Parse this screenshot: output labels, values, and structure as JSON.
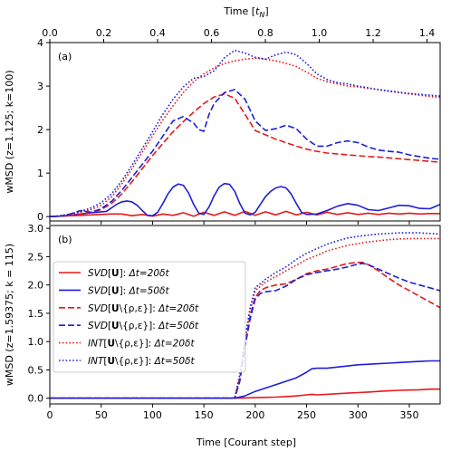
{
  "figure": {
    "top_axis_label": "Time [t_N]",
    "bottom_axis_label": "Time [Courant step]",
    "top_ticks": [
      "0.0",
      "0.2",
      "0.4",
      "0.6",
      "0.8",
      "1.0",
      "1.2",
      "1.4"
    ]
  },
  "colors": {
    "red": "#e41a1c",
    "blue": "#1f1fd6"
  },
  "chart_data": [
    {
      "type": "line",
      "panel_label": "(a)",
      "ylabel": "wMSD (z=1.125; k=100)",
      "xlabel": "",
      "xlim": [
        0,
        380
      ],
      "ylim": [
        -0.1,
        4.0
      ],
      "xticks": [
        0,
        50,
        100,
        150,
        200,
        250,
        300,
        350
      ],
      "yticks": [
        0,
        1,
        2,
        3,
        4
      ],
      "series": [
        {
          "name": "SVD[U] : Δt = 20δt",
          "color": "red",
          "dash": "solid",
          "x": [
            0,
            10,
            20,
            30,
            40,
            50,
            60,
            70,
            80,
            90,
            100,
            110,
            120,
            130,
            140,
            150,
            160,
            170,
            180,
            190,
            200,
            210,
            220,
            230,
            240,
            250,
            260,
            270,
            280,
            290,
            300,
            310,
            320,
            330,
            340,
            350,
            360,
            370,
            380
          ],
          "y": [
            0,
            0.01,
            0.02,
            0.03,
            0.04,
            0.05,
            0.06,
            0.06,
            0.02,
            0.05,
            0.01,
            0.06,
            0.03,
            0.09,
            0.01,
            0.1,
            0.03,
            0.11,
            0.03,
            0.12,
            0.03,
            0.11,
            0.04,
            0.12,
            0.04,
            0.1,
            0.04,
            0.1,
            0.05,
            0.09,
            0.05,
            0.08,
            0.05,
            0.08,
            0.06,
            0.08,
            0.06,
            0.07,
            0.07
          ]
        },
        {
          "name": "SVD[U] : Δt = 50δt",
          "color": "blue",
          "dash": "solid",
          "x": [
            0,
            10,
            20,
            30,
            40,
            50,
            55,
            60,
            65,
            70,
            75,
            80,
            85,
            90,
            95,
            100,
            105,
            110,
            115,
            120,
            125,
            130,
            135,
            140,
            145,
            150,
            155,
            160,
            165,
            170,
            175,
            180,
            185,
            190,
            195,
            200,
            205,
            210,
            215,
            220,
            225,
            230,
            235,
            240,
            245,
            250,
            260,
            270,
            280,
            290,
            300,
            310,
            320,
            330,
            340,
            350,
            360,
            370,
            380
          ],
          "y": [
            0,
            0.01,
            0.03,
            0.06,
            0.09,
            0.11,
            0.12,
            0.2,
            0.28,
            0.34,
            0.36,
            0.34,
            0.26,
            0.14,
            0.03,
            0.02,
            0.1,
            0.3,
            0.52,
            0.68,
            0.75,
            0.72,
            0.55,
            0.28,
            0.08,
            0.05,
            0.22,
            0.48,
            0.68,
            0.76,
            0.74,
            0.58,
            0.3,
            0.08,
            0.04,
            0.1,
            0.28,
            0.46,
            0.58,
            0.66,
            0.69,
            0.66,
            0.52,
            0.3,
            0.1,
            0.05,
            0.06,
            0.14,
            0.24,
            0.3,
            0.26,
            0.16,
            0.14,
            0.2,
            0.26,
            0.25,
            0.19,
            0.18,
            0.28
          ]
        },
        {
          "name": "SVD[U\\{ρ,ε}] : Δt = 20δt",
          "color": "red",
          "dash": "dashed",
          "x": [
            0,
            10,
            20,
            30,
            40,
            50,
            60,
            70,
            80,
            90,
            100,
            110,
            120,
            130,
            140,
            150,
            160,
            170,
            180,
            190,
            200,
            210,
            220,
            230,
            240,
            250,
            260,
            270,
            280,
            290,
            300,
            310,
            320,
            330,
            340,
            350,
            360,
            370,
            380
          ],
          "y": [
            0,
            0.01,
            0.03,
            0.06,
            0.1,
            0.16,
            0.3,
            0.52,
            0.8,
            1.1,
            1.4,
            1.68,
            1.95,
            2.18,
            2.4,
            2.6,
            2.75,
            2.82,
            2.72,
            2.35,
            1.98,
            1.88,
            1.78,
            1.7,
            1.62,
            1.55,
            1.5,
            1.46,
            1.44,
            1.42,
            1.4,
            1.38,
            1.37,
            1.35,
            1.33,
            1.31,
            1.29,
            1.27,
            1.25
          ]
        },
        {
          "name": "SVD[U\\{ρ,ε}] : Δt = 50δt",
          "color": "blue",
          "dash": "dashed",
          "x": [
            0,
            10,
            20,
            30,
            40,
            50,
            60,
            70,
            80,
            90,
            100,
            110,
            120,
            130,
            140,
            145,
            150,
            155,
            160,
            170,
            180,
            190,
            200,
            210,
            220,
            230,
            240,
            250,
            260,
            270,
            280,
            290,
            300,
            310,
            320,
            330,
            340,
            350,
            360,
            370,
            380
          ],
          "y": [
            0,
            0.01,
            0.06,
            0.14,
            0.1,
            0.18,
            0.35,
            0.6,
            0.9,
            1.2,
            1.5,
            1.85,
            2.2,
            2.3,
            2.15,
            2.0,
            1.96,
            2.35,
            2.6,
            2.85,
            2.92,
            2.7,
            2.2,
            1.98,
            2.02,
            2.1,
            2.02,
            1.78,
            1.62,
            1.62,
            1.7,
            1.74,
            1.7,
            1.6,
            1.53,
            1.5,
            1.48,
            1.42,
            1.38,
            1.34,
            1.32
          ]
        },
        {
          "name": "INT[U\\{ρ,ε}] : Δt = 20δt",
          "color": "red",
          "dash": "dotted",
          "x": [
            0,
            10,
            20,
            30,
            40,
            50,
            60,
            70,
            80,
            90,
            100,
            110,
            120,
            130,
            140,
            150,
            160,
            170,
            180,
            190,
            200,
            210,
            220,
            230,
            240,
            250,
            260,
            270,
            280,
            290,
            300,
            310,
            320,
            330,
            340,
            350,
            360,
            370,
            380
          ],
          "y": [
            0,
            0.02,
            0.05,
            0.1,
            0.16,
            0.26,
            0.45,
            0.75,
            1.1,
            1.48,
            1.85,
            2.22,
            2.55,
            2.85,
            3.1,
            3.28,
            3.42,
            3.52,
            3.58,
            3.62,
            3.64,
            3.62,
            3.58,
            3.52,
            3.45,
            3.32,
            3.18,
            3.1,
            3.05,
            3.0,
            2.98,
            2.95,
            2.92,
            2.88,
            2.85,
            2.82,
            2.79,
            2.76,
            2.74
          ]
        },
        {
          "name": "INT[U\\{ρ,ε}] : Δt = 50δt",
          "color": "blue",
          "dash": "dotted",
          "x": [
            0,
            10,
            20,
            30,
            40,
            50,
            60,
            70,
            80,
            90,
            100,
            110,
            120,
            130,
            140,
            150,
            160,
            170,
            180,
            190,
            200,
            210,
            220,
            230,
            240,
            250,
            260,
            270,
            280,
            290,
            300,
            310,
            320,
            330,
            340,
            350,
            360,
            370,
            380
          ],
          "y": [
            0,
            0.02,
            0.06,
            0.12,
            0.2,
            0.32,
            0.52,
            0.82,
            1.18,
            1.56,
            1.95,
            2.35,
            2.7,
            2.98,
            3.18,
            3.22,
            3.35,
            3.65,
            3.82,
            3.76,
            3.66,
            3.62,
            3.72,
            3.78,
            3.72,
            3.52,
            3.28,
            3.15,
            3.08,
            3.05,
            3.0,
            2.96,
            2.92,
            2.89,
            2.86,
            2.83,
            2.81,
            2.79,
            2.77
          ]
        }
      ]
    },
    {
      "type": "line",
      "panel_label": "(b)",
      "ylabel": "wMSD (z=1.59375; k = 115)",
      "xlabel": "Time [Courant step]",
      "xlim": [
        0,
        380
      ],
      "ylim": [
        -0.1,
        3.05
      ],
      "xticks": [
        0,
        50,
        100,
        150,
        200,
        250,
        300,
        350
      ],
      "yticks": [
        0.0,
        0.5,
        1.0,
        1.5,
        2.0,
        2.5,
        3.0
      ],
      "series": [
        {
          "name": "SVD[U] : Δt = 20δt",
          "color": "red",
          "dash": "solid",
          "x": [
            0,
            180,
            190,
            200,
            210,
            220,
            230,
            240,
            250,
            255,
            260,
            270,
            280,
            290,
            300,
            310,
            320,
            330,
            340,
            350,
            360,
            370,
            380
          ],
          "y": [
            0,
            0,
            0.005,
            0.01,
            0.015,
            0.02,
            0.03,
            0.04,
            0.06,
            0.07,
            0.06,
            0.07,
            0.08,
            0.09,
            0.1,
            0.11,
            0.12,
            0.13,
            0.14,
            0.145,
            0.15,
            0.16,
            0.16
          ]
        },
        {
          "name": "SVD[U] : Δt = 50δt",
          "color": "blue",
          "dash": "solid",
          "x": [
            0,
            180,
            190,
            200,
            210,
            220,
            230,
            240,
            250,
            255,
            260,
            270,
            280,
            290,
            300,
            310,
            320,
            330,
            340,
            350,
            360,
            370,
            380
          ],
          "y": [
            0,
            0,
            0.04,
            0.12,
            0.18,
            0.24,
            0.3,
            0.36,
            0.46,
            0.52,
            0.53,
            0.53,
            0.55,
            0.57,
            0.59,
            0.6,
            0.61,
            0.62,
            0.63,
            0.64,
            0.65,
            0.66,
            0.66
          ]
        },
        {
          "name": "SVD[U\\{ρ,ε}] : Δt = 20δt",
          "color": "red",
          "dash": "dashed",
          "x": [
            0,
            180,
            185,
            190,
            195,
            200,
            205,
            210,
            220,
            230,
            240,
            250,
            260,
            270,
            280,
            290,
            300,
            305,
            310,
            320,
            330,
            340,
            350,
            360,
            370,
            380
          ],
          "y": [
            0,
            0,
            0.35,
            0.95,
            1.45,
            1.78,
            1.9,
            1.95,
            2.0,
            2.02,
            2.1,
            2.2,
            2.25,
            2.28,
            2.33,
            2.38,
            2.4,
            2.4,
            2.36,
            2.25,
            2.12,
            2.0,
            1.9,
            1.8,
            1.7,
            1.6
          ]
        },
        {
          "name": "SVD[U\\{ρ,ε}] : Δt = 50δt",
          "color": "blue",
          "dash": "dashed",
          "x": [
            0,
            180,
            185,
            190,
            195,
            200,
            205,
            210,
            220,
            230,
            240,
            250,
            260,
            270,
            280,
            290,
            300,
            305,
            310,
            320,
            330,
            340,
            350,
            360,
            370,
            380
          ],
          "y": [
            0,
            0,
            0.3,
            0.9,
            1.4,
            1.75,
            1.85,
            1.88,
            1.9,
            1.98,
            2.1,
            2.18,
            2.22,
            2.25,
            2.28,
            2.32,
            2.37,
            2.38,
            2.36,
            2.28,
            2.2,
            2.12,
            2.05,
            2.0,
            1.95,
            1.9
          ]
        },
        {
          "name": "INT[U\\{ρ,ε}] : Δt = 20δt",
          "color": "red",
          "dash": "dotted",
          "x": [
            0,
            180,
            185,
            190,
            195,
            200,
            210,
            220,
            230,
            240,
            250,
            260,
            270,
            280,
            290,
            300,
            310,
            320,
            330,
            340,
            350,
            360,
            370,
            380
          ],
          "y": [
            0,
            0,
            0.4,
            1.0,
            1.55,
            1.9,
            2.05,
            2.15,
            2.25,
            2.35,
            2.45,
            2.52,
            2.6,
            2.65,
            2.7,
            2.73,
            2.76,
            2.78,
            2.8,
            2.81,
            2.82,
            2.82,
            2.82,
            2.82
          ]
        },
        {
          "name": "INT[U\\{ρ,ε}] : Δt = 50δt",
          "color": "blue",
          "dash": "dotted",
          "x": [
            0,
            180,
            185,
            190,
            195,
            200,
            210,
            220,
            230,
            240,
            250,
            260,
            270,
            280,
            290,
            300,
            310,
            320,
            330,
            340,
            350,
            360,
            370,
            380
          ],
          "y": [
            0,
            0,
            0.42,
            1.05,
            1.6,
            1.95,
            2.1,
            2.22,
            2.32,
            2.45,
            2.56,
            2.64,
            2.72,
            2.78,
            2.83,
            2.86,
            2.88,
            2.9,
            2.91,
            2.92,
            2.92,
            2.92,
            2.91,
            2.9
          ]
        }
      ]
    }
  ]
}
